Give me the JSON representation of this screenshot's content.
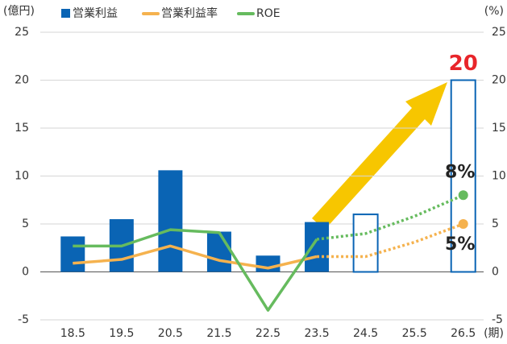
{
  "chart_data": {
    "type": "bar",
    "y_label": "(億円)",
    "y2_label": "(%)",
    "x_label": "(期)",
    "categories": [
      "18.5",
      "19.5",
      "20.5",
      "21.5",
      "22.5",
      "23.5",
      "24.5",
      "25.5",
      "26.5"
    ],
    "series": [
      {
        "name": "営業利益",
        "color": "#0a64b4",
        "values": [
          3.7,
          5.5,
          10.6,
          4.2,
          1.7,
          5.2,
          6.0,
          null,
          20
        ],
        "value_labels": [
          null,
          null,
          null,
          null,
          null,
          null,
          null,
          null,
          "20"
        ]
      },
      {
        "name": "営業利益率",
        "color": "#f5b24e",
        "type": "line",
        "axis": "y2",
        "values": [
          0.9,
          1.3,
          2.7,
          1.2,
          0.4,
          1.6,
          1.6,
          3.1,
          5
        ],
        "value_labels": [
          null,
          null,
          null,
          null,
          null,
          null,
          null,
          null,
          "5%"
        ]
      },
      {
        "name": "ROE",
        "color": "#66bb5e",
        "type": "line",
        "axis": "y2",
        "values": [
          2.7,
          2.7,
          4.4,
          4.1,
          -4.0,
          3.4,
          4.0,
          5.8,
          8
        ],
        "value_labels": [
          null,
          null,
          null,
          null,
          null,
          null,
          null,
          null,
          "8%"
        ]
      }
    ],
    "ylim": [
      -5,
      25
    ],
    "yticks": [
      -5,
      0,
      5,
      10,
      15,
      20,
      25
    ],
    "y2lim": [
      -5,
      25
    ],
    "y2ticks": [
      -5,
      0,
      5,
      10,
      15,
      20,
      25
    ],
    "grid": true,
    "legend": "top"
  }
}
